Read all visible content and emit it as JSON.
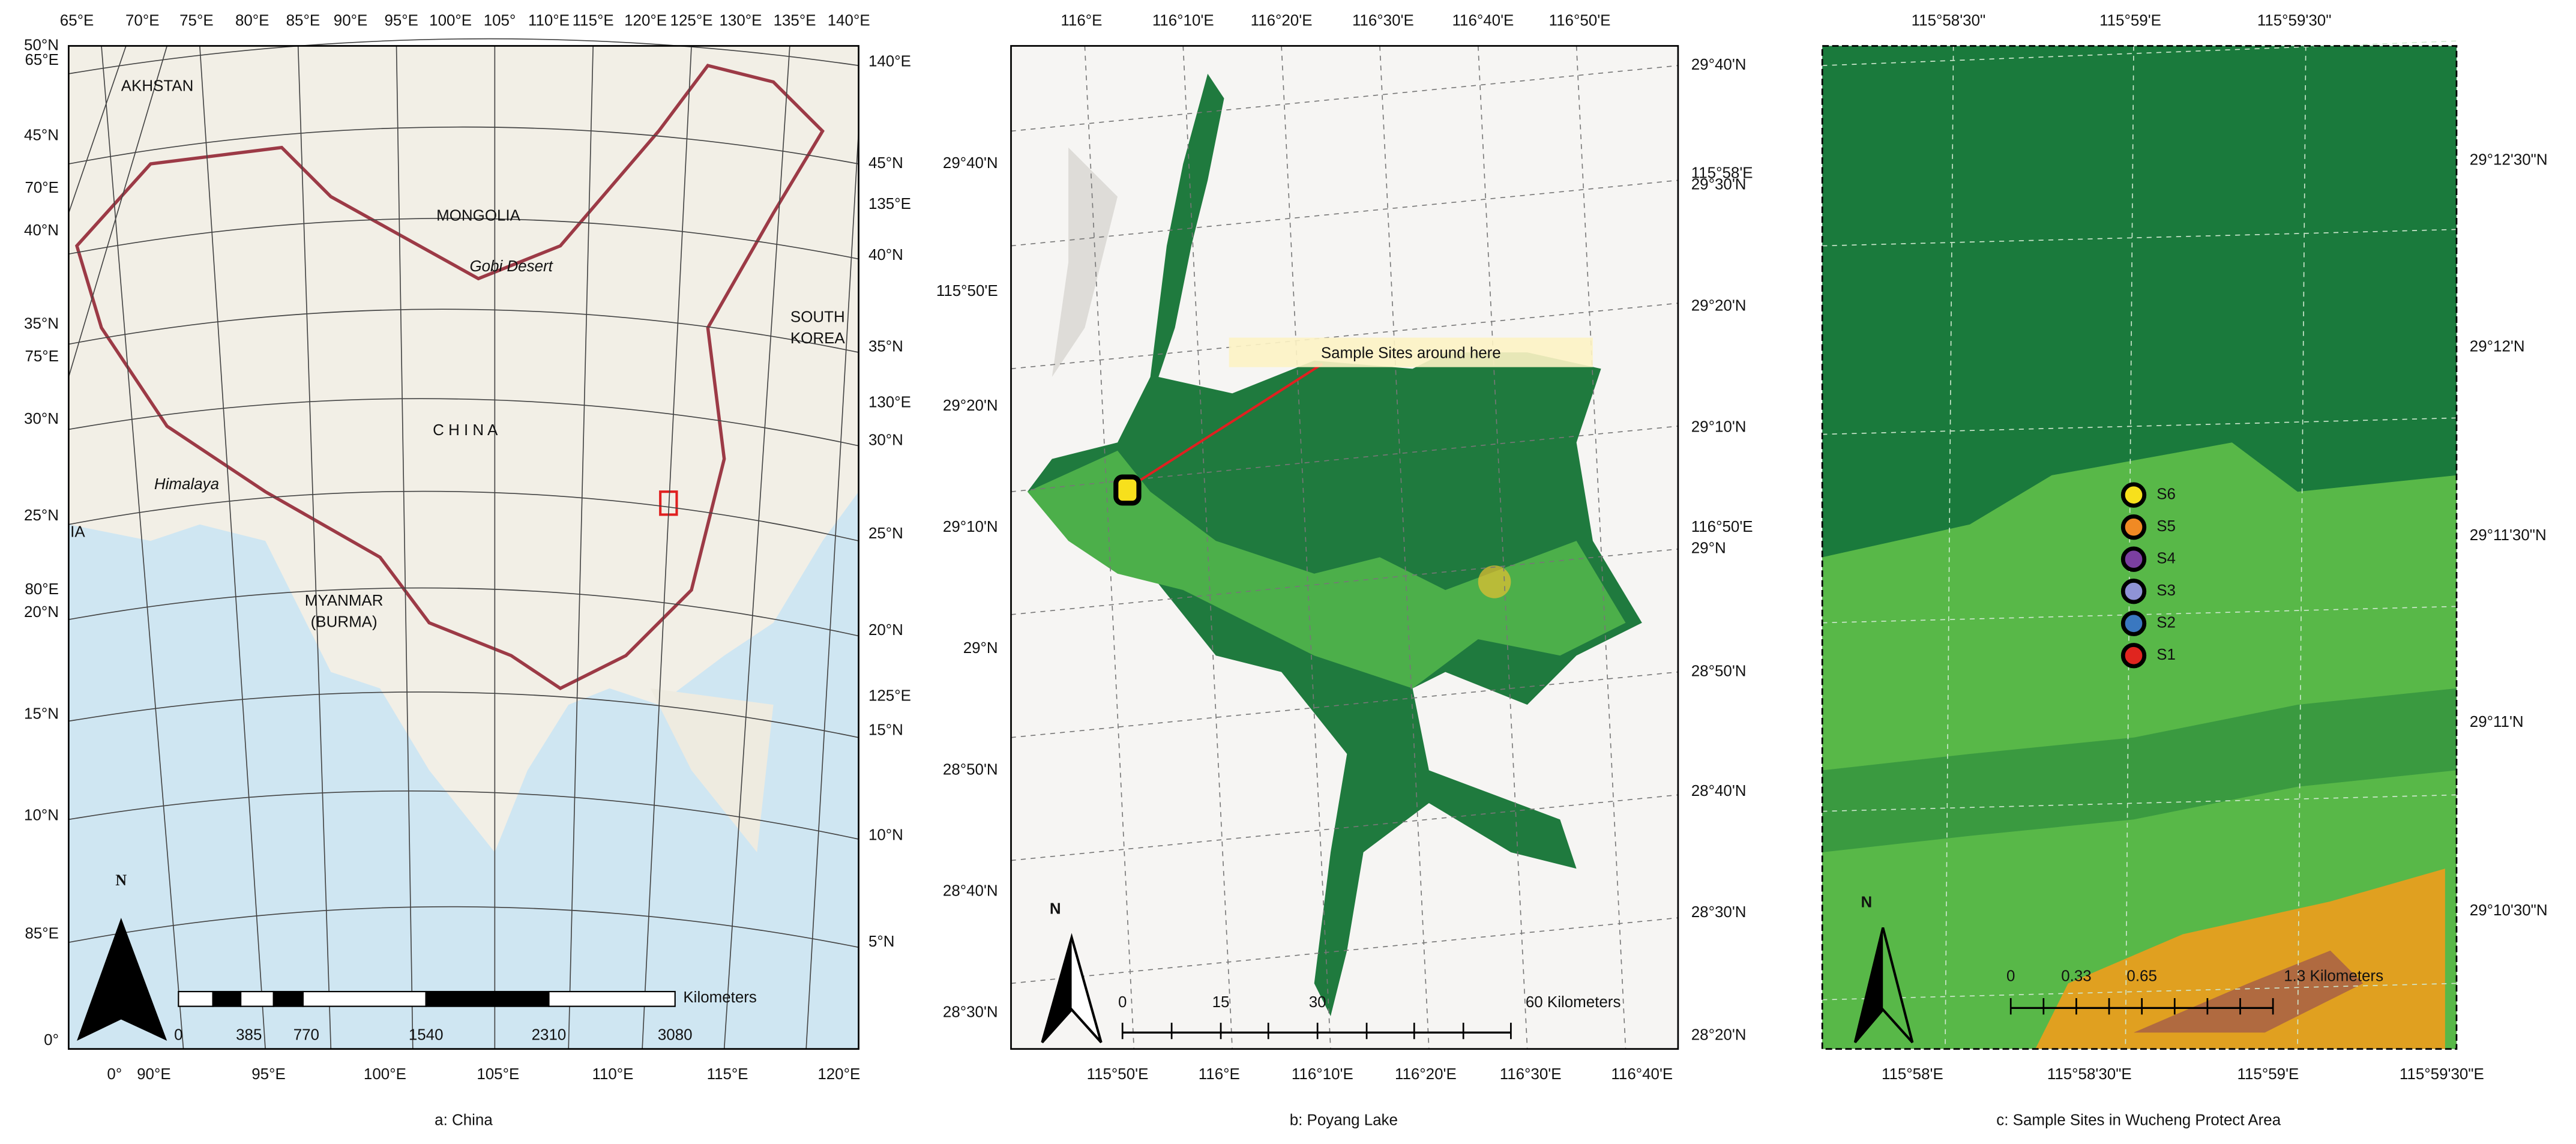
{
  "panels": [
    {
      "caption": "a: China",
      "top_labels": [
        "65°E",
        "70°E",
        "75°E",
        "80°E",
        "85°E",
        "90°E",
        "95°E",
        "100°E",
        "105°",
        "110°E",
        "115°E",
        "120°E",
        "125°E",
        "130°E",
        "135°E",
        "140°E"
      ],
      "left_labels": [
        "50°N",
        "65°E",
        "45°N",
        "70°E",
        "40°N",
        "35°N",
        "75°E",
        "30°N",
        "25°N",
        "80°E",
        "20°N",
        "15°N",
        "10°N",
        "85°E",
        "0°"
      ],
      "right_labels": [
        "140°E",
        "45°N",
        "135°E",
        "40°N",
        "35°N",
        "130°E",
        "30°N",
        "25°N",
        "20°N",
        "125°E",
        "15°N",
        "10°N",
        "5°N"
      ],
      "bottom_labels": [
        "0°",
        "90°E",
        "95°E",
        "100°E",
        "105°E",
        "110°E",
        "115°E",
        "120°E"
      ],
      "places": [
        "AKHSTAN",
        "MONGOLIA",
        "Gobi Desert",
        "SOUTH",
        "KOREA",
        "C H I N A",
        "Himalaya",
        "IA",
        "MYANMAR",
        "(BURMA)"
      ],
      "north": "N",
      "scale_labels": [
        "0",
        "385",
        "770",
        "1540",
        "2310",
        "3080"
      ],
      "scale_unit": "Kilometers"
    },
    {
      "caption": "b: Poyang Lake",
      "top_labels": [
        "116°E",
        "116°10'E",
        "116°20'E",
        "116°30'E",
        "116°40'E",
        "116°50'E"
      ],
      "left_labels": [
        "29°40'N",
        "115°50'E",
        "29°20'N",
        "29°10'N",
        "29°N",
        "28°50'N",
        "28°40'N",
        "28°30'N"
      ],
      "right_labels": [
        "29°40'N",
        "115°58'E",
        "29°30'N",
        "29°20'N",
        "29°10'N",
        "116°50'E",
        "29°N",
        "28°50'N",
        "28°40'N",
        "28°30'N",
        "28°20'N"
      ],
      "bottom_labels": [
        "115°50'E",
        "116°E",
        "116°10'E",
        "116°20'E",
        "116°30'E",
        "116°40'E"
      ],
      "annotation": "Sample Sites around here",
      "north": "N",
      "scale_labels": [
        "0",
        "15",
        "30",
        "60 Kilometers"
      ]
    },
    {
      "caption": "c: Sample Sites in Wucheng Protect Area",
      "top_labels": [
        "115°58'30\"",
        "115°59'E",
        "115°59'30\""
      ],
      "right_labels": [
        "29°12'30\"N",
        "29°12'N",
        "29°11'30\"N",
        "29°11'N",
        "29°10'30\"N"
      ],
      "bottom_labels": [
        "115°58'E",
        "115°58'30\"E",
        "115°59'E",
        "115°59'30\"E"
      ],
      "sites": [
        {
          "name": "S6",
          "color": "#f7e01c"
        },
        {
          "name": "S5",
          "color": "#f08a24"
        },
        {
          "name": "S4",
          "color": "#7b3fa0"
        },
        {
          "name": "S3",
          "color": "#8f93d6"
        },
        {
          "name": "S2",
          "color": "#3a78c0"
        },
        {
          "name": "S1",
          "color": "#e0251f"
        }
      ],
      "north": "N",
      "scale_labels": [
        "0",
        "0.33",
        "0.65",
        "1.3 Kilometers"
      ]
    }
  ]
}
